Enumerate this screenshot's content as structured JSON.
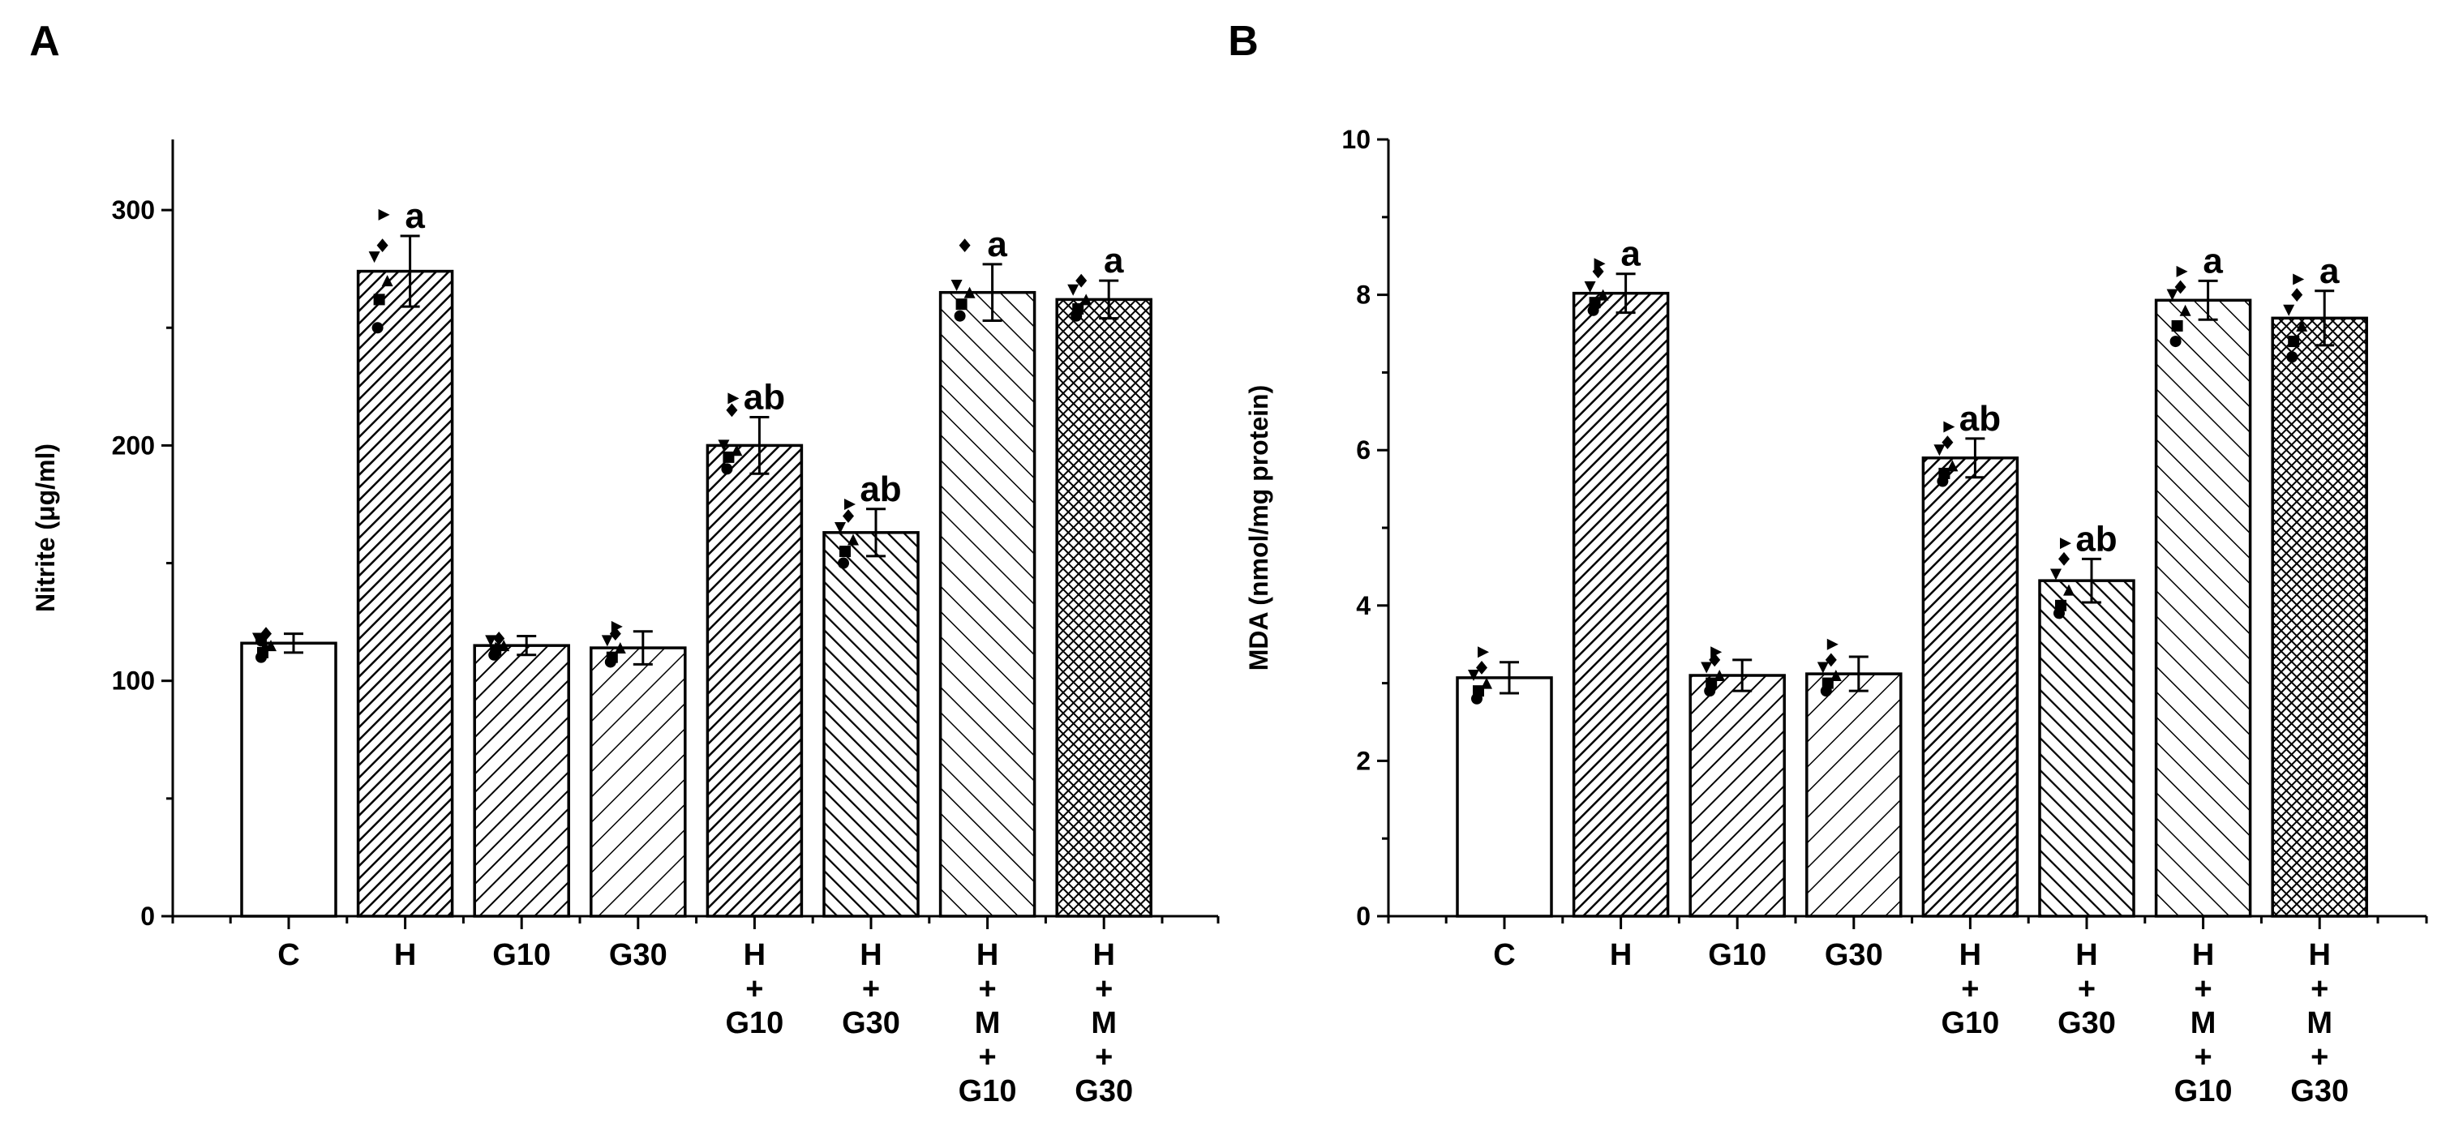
{
  "chart_data": [
    {
      "panel_label": "A",
      "type": "bar",
      "title": "",
      "xlabel": "",
      "ylabel": "Nitrite (μg/ml)",
      "ylim": [
        0,
        330
      ],
      "yticks": [
        0,
        100,
        200,
        300
      ],
      "grid": false,
      "categories": [
        [
          "C"
        ],
        [
          "H"
        ],
        [
          "G10"
        ],
        [
          "G30"
        ],
        [
          "H",
          "+",
          "G10"
        ],
        [
          "H",
          "+",
          "G30"
        ],
        [
          "H",
          "+",
          "M",
          "+",
          "G10"
        ],
        [
          "H",
          "+",
          "M",
          "+",
          "G30"
        ]
      ],
      "values": [
        116,
        274,
        115,
        114,
        200,
        163,
        265,
        262
      ],
      "errors": [
        4,
        15,
        4,
        7,
        12,
        10,
        12,
        8
      ],
      "significance": [
        "",
        "a",
        "",
        "",
        "ab",
        "ab",
        "a",
        "a"
      ],
      "patterns": [
        "none",
        "diag-dense",
        "diag",
        "diag-wide",
        "diag-dense",
        "anti",
        "anti-wide",
        "cross"
      ],
      "points": [
        [
          110,
          112,
          115,
          118,
          120,
          114,
          117
        ],
        [
          250,
          262,
          270,
          280,
          285,
          298
        ],
        [
          111,
          113,
          115,
          117,
          118,
          114
        ],
        [
          108,
          110,
          114,
          117,
          120,
          123
        ],
        [
          190,
          195,
          198,
          200,
          215,
          220
        ],
        [
          150,
          155,
          160,
          165,
          170,
          175
        ],
        [
          255,
          260,
          265,
          268,
          285
        ],
        [
          255,
          258,
          262,
          266,
          270
        ]
      ]
    },
    {
      "panel_label": "B",
      "type": "bar",
      "title": "",
      "xlabel": "",
      "ylabel": "MDA (nmol/mg protein)",
      "ylim": [
        0,
        10
      ],
      "yticks": [
        0,
        2,
        4,
        6,
        8,
        10
      ],
      "grid": false,
      "categories": [
        [
          "C"
        ],
        [
          "H"
        ],
        [
          "G10"
        ],
        [
          "G30"
        ],
        [
          "H",
          "+",
          "G10"
        ],
        [
          "H",
          "+",
          "G30"
        ],
        [
          "H",
          "+",
          "M",
          "+",
          "G10"
        ],
        [
          "H",
          "+",
          "M",
          "+",
          "G30"
        ]
      ],
      "values": [
        3.07,
        8.02,
        3.1,
        3.12,
        5.9,
        4.32,
        7.93,
        7.7
      ],
      "errors": [
        0.2,
        0.25,
        0.2,
        0.22,
        0.25,
        0.28,
        0.25,
        0.35
      ],
      "significance": [
        "",
        "a",
        "",
        "",
        "ab",
        "ab",
        "a",
        "a"
      ],
      "patterns": [
        "none",
        "diag-dense",
        "diag",
        "diag-wide",
        "diag-dense",
        "anti",
        "anti-wide",
        "cross"
      ],
      "points": [
        [
          2.8,
          2.9,
          3.0,
          3.1,
          3.2,
          3.4
        ],
        [
          7.8,
          7.9,
          8.0,
          8.1,
          8.3,
          8.4
        ],
        [
          2.9,
          3.0,
          3.1,
          3.2,
          3.3,
          3.4
        ],
        [
          2.9,
          3.0,
          3.1,
          3.2,
          3.3,
          3.5
        ],
        [
          5.6,
          5.7,
          5.8,
          6.0,
          6.1,
          6.3
        ],
        [
          3.9,
          4.0,
          4.2,
          4.4,
          4.6,
          4.8
        ],
        [
          7.4,
          7.6,
          7.8,
          8.0,
          8.1,
          8.3
        ],
        [
          7.2,
          7.4,
          7.6,
          7.8,
          8.0,
          8.2
        ]
      ]
    }
  ]
}
